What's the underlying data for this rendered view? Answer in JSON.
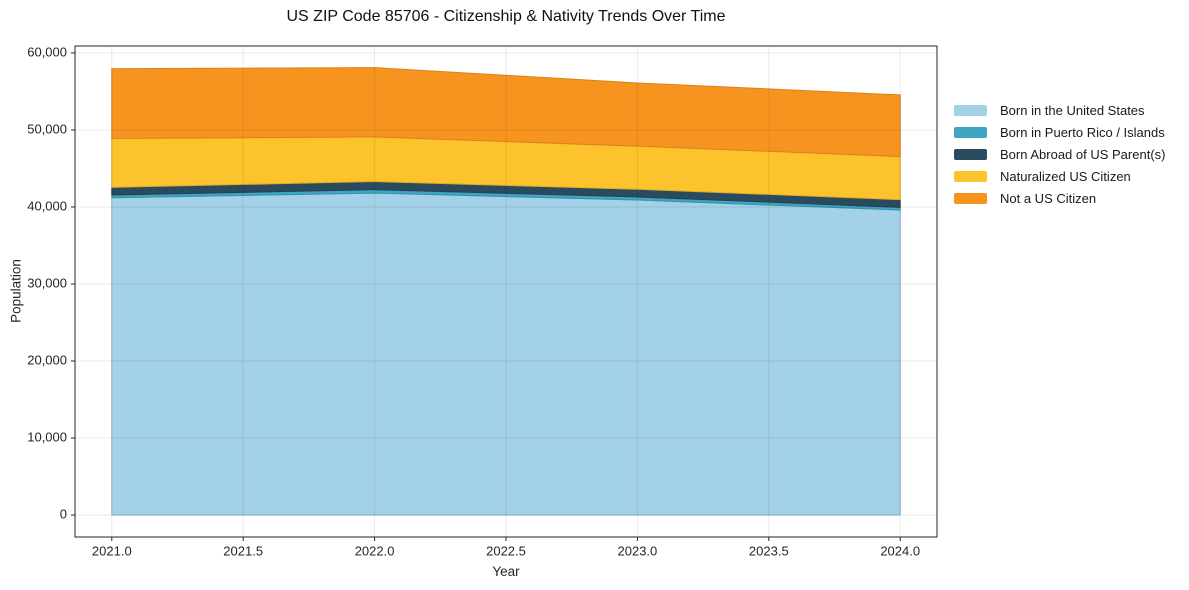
{
  "chart_data": {
    "type": "area",
    "stacked": true,
    "title": "US ZIP Code 85706 - Citizenship & Nativity Trends Over Time",
    "xlabel": "Year",
    "ylabel": "Population",
    "x": [
      2021,
      2022,
      2023,
      2024
    ],
    "series": [
      {
        "name": "Born in the United States",
        "color": "#A3D1E8",
        "values": [
          41200,
          41800,
          40900,
          39600
        ]
      },
      {
        "name": "Born in Puerto Rico / Islands",
        "color": "#3FA5C2",
        "values": [
          350,
          450,
          400,
          350
        ]
      },
      {
        "name": "Born Abroad of US Parent(s)",
        "color": "#2A4B5E",
        "values": [
          1000,
          1050,
          1000,
          1000
        ]
      },
      {
        "name": "Naturalized US Citizen",
        "color": "#FCC32D",
        "values": [
          6350,
          5800,
          5600,
          5600
        ]
      },
      {
        "name": "Not a US Citizen",
        "color": "#F79420",
        "values": [
          9050,
          9000,
          8200,
          8000
        ]
      }
    ],
    "totals": [
      57950,
      58100,
      56100,
      54550
    ],
    "xlim": [
      2020.86,
      2024.14
    ],
    "ylim": [
      -2850,
      60900
    ],
    "xticks": [
      2021.0,
      2021.5,
      2022.0,
      2022.5,
      2023.0,
      2023.5,
      2024.0
    ],
    "xtick_labels": [
      "2021.0",
      "2021.5",
      "2022.0",
      "2022.5",
      "2023.0",
      "2023.5",
      "2024.0"
    ],
    "yticks": [
      0,
      10000,
      20000,
      30000,
      40000,
      50000,
      60000
    ],
    "ytick_labels": [
      "0",
      "10,000",
      "20,000",
      "30,000",
      "40,000",
      "50,000",
      "60,000"
    ],
    "grid": true,
    "grid_color": "rgba(0,0,0,0.08)",
    "spine_color": "#262626",
    "legend_position": "right"
  }
}
